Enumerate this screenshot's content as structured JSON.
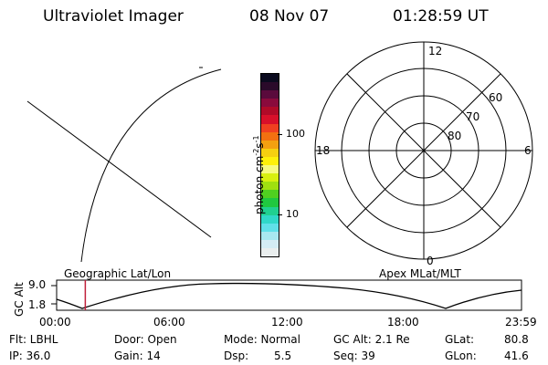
{
  "header": {
    "title": "Ultraviolet Imager",
    "date": "08 Nov 07",
    "time": "01:28:59 UT"
  },
  "colorbar": {
    "label_parts": [
      "photon cm",
      "-2",
      "s",
      "-1"
    ],
    "ticks": [
      "100",
      "10"
    ],
    "colors": [
      "#0a0a1e",
      "#2a0a2a",
      "#5a0a3c",
      "#8a0a3c",
      "#b00a28",
      "#d8102a",
      "#f04020",
      "#f27010",
      "#f4a010",
      "#f6d010",
      "#fef00a",
      "#f6fa80",
      "#d8f010",
      "#a0e010",
      "#50d020",
      "#20c840",
      "#20d090",
      "#30d8c8",
      "#60e0e8",
      "#a8e8f0",
      "#d4ecf4",
      "#eaeeee"
    ]
  },
  "polar_plot": {
    "mlt_labels": {
      "top": "12",
      "left": "18",
      "right": "6",
      "bottom": "0"
    },
    "lat_labels": [
      "60",
      "70",
      "80"
    ]
  },
  "timeline": {
    "left_label": "Geographic Lat/Lon",
    "right_label": "Apex MLat/MLT",
    "y_axis_label": "GC Alt",
    "y_ticks": [
      "9.0",
      "1.8"
    ],
    "x_ticks": [
      "00:00",
      "06:00",
      "12:00",
      "18:00",
      "23:59"
    ],
    "current_time_marker_hours": 1.48
  },
  "status": {
    "flt": "Flt: LBHL",
    "ip": "IP: 36.0",
    "door": "Door: Open",
    "gain": "Gain: 14",
    "mode": "Mode: Normal",
    "dsp_label": "Dsp:",
    "dsp_value": "5.5",
    "gc_alt": "GC Alt: 2.1 Re",
    "seq": "Seq: 39",
    "glat_label": "GLat:",
    "glat_value": "80.8",
    "glon_label": "GLon:",
    "glon_value": "41.6"
  }
}
